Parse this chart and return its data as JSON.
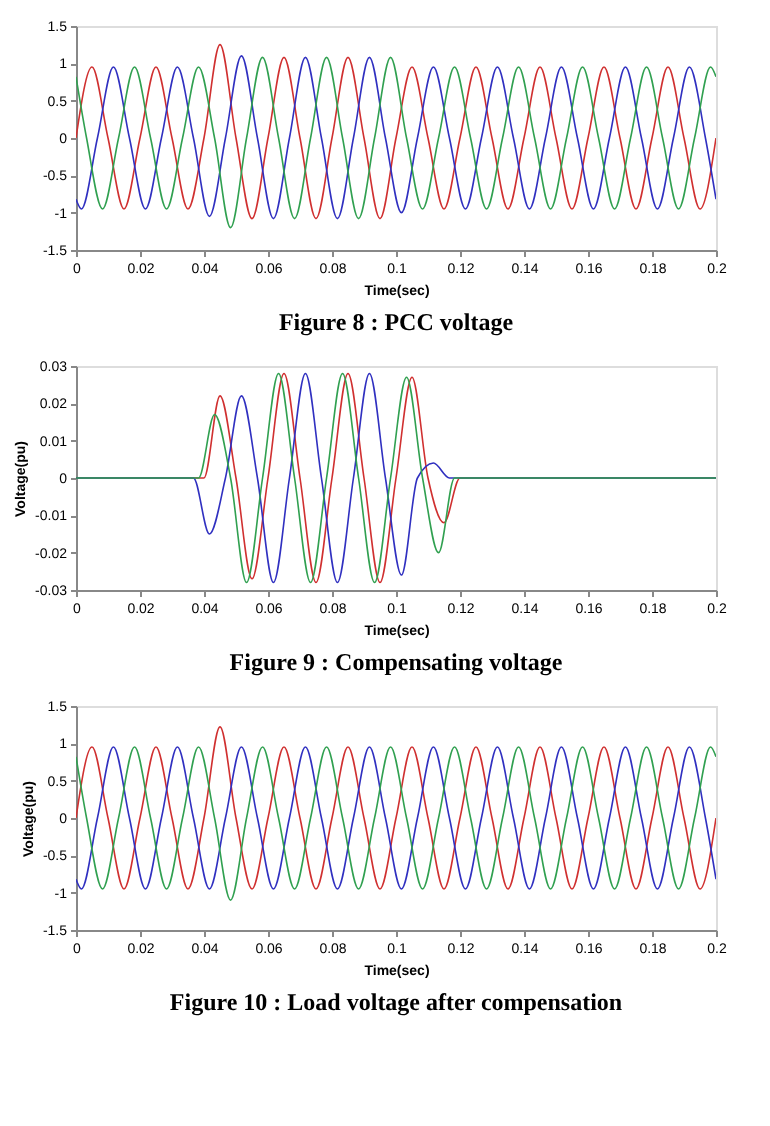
{
  "chart_data": [
    {
      "type": "line",
      "title": "Figure 8 : PCC voltage",
      "xlabel": "Time(sec)",
      "xlim": [
        0,
        0.2
      ],
      "ylim": [
        -1.5,
        1.5
      ],
      "xticks": [
        0,
        0.02,
        0.04,
        0.06,
        0.08,
        0.1,
        0.12,
        0.14,
        0.16,
        0.18,
        0.2
      ],
      "yticks": [
        -1.5,
        -1,
        -0.5,
        0,
        0.5,
        1,
        1.5
      ],
      "series": [
        {
          "color": "#d03030",
          "x": [
            0,
            0.005,
            0.01,
            0.015,
            0.02,
            0.025,
            0.03,
            0.035,
            0.04,
            0.045,
            0.05,
            0.055,
            0.06,
            0.065,
            0.07,
            0.075,
            0.08,
            0.085,
            0.09,
            0.095,
            0.1,
            0.105,
            0.11,
            0.115,
            0.12,
            0.125,
            0.13,
            0.135,
            0.14,
            0.145,
            0.15,
            0.155,
            0.16,
            0.165,
            0.17,
            0.175,
            0.18,
            0.185,
            0.19,
            0.195,
            0.2
          ],
          "values": [
            0,
            0.95,
            0,
            -0.95,
            0,
            0.95,
            0,
            -0.95,
            0,
            1.25,
            0,
            -1.08,
            0,
            1.08,
            0,
            -1.08,
            0,
            1.08,
            0,
            -1.08,
            0,
            0.95,
            0,
            -0.95,
            0,
            0.95,
            0,
            -0.95,
            0,
            0.95,
            0,
            -0.95,
            0,
            0.95,
            0,
            -0.95,
            0,
            0.95,
            0,
            -0.95,
            0
          ]
        },
        {
          "color": "#3030c0",
          "x": [
            0,
            0.0017,
            0.0067,
            0.0117,
            0.0167,
            0.0217,
            0.0267,
            0.0317,
            0.0367,
            0.0417,
            0.0467,
            0.0517,
            0.0567,
            0.0617,
            0.0667,
            0.0717,
            0.0767,
            0.0817,
            0.0867,
            0.0917,
            0.0967,
            0.1017,
            0.1067,
            0.1117,
            0.1167,
            0.1217,
            0.1267,
            0.1317,
            0.1367,
            0.1417,
            0.1467,
            0.1517,
            0.1567,
            0.1617,
            0.1667,
            0.1717,
            0.1767,
            0.1817,
            0.1867,
            0.1917,
            0.1967,
            0.2
          ],
          "values": [
            -0.82,
            -0.95,
            0,
            0.95,
            0,
            -0.95,
            0,
            0.95,
            0,
            -1.05,
            0,
            1.1,
            0,
            -1.08,
            0,
            1.08,
            0,
            -1.08,
            0,
            1.08,
            0,
            -1.0,
            0,
            0.95,
            0,
            -0.95,
            0,
            0.95,
            0,
            -0.95,
            0,
            0.95,
            0,
            -0.95,
            0,
            0.95,
            0,
            -0.95,
            0,
            0.95,
            0,
            -0.82
          ]
        },
        {
          "color": "#30a050",
          "x": [
            0,
            0.0033,
            0.0083,
            0.0133,
            0.0183,
            0.0233,
            0.0283,
            0.0333,
            0.0383,
            0.0433,
            0.0483,
            0.0533,
            0.0583,
            0.0633,
            0.0683,
            0.0733,
            0.0783,
            0.0833,
            0.0883,
            0.0933,
            0.0983,
            0.1033,
            0.1083,
            0.1133,
            0.1183,
            0.1233,
            0.1283,
            0.1333,
            0.1383,
            0.1433,
            0.1483,
            0.1533,
            0.1583,
            0.1633,
            0.1683,
            0.1733,
            0.1783,
            0.1833,
            0.1883,
            0.1933,
            0.1983,
            0.2
          ],
          "values": [
            0.82,
            0,
            -0.95,
            0,
            0.95,
            0,
            -0.95,
            0,
            0.95,
            0,
            -1.2,
            0,
            1.08,
            0,
            -1.08,
            0,
            1.08,
            0,
            -1.08,
            0,
            1.08,
            0,
            -0.95,
            0,
            0.95,
            0,
            -0.95,
            0,
            0.95,
            0,
            -0.95,
            0,
            0.95,
            0,
            -0.95,
            0,
            0.95,
            0,
            -0.95,
            0,
            0.95,
            0.82
          ]
        }
      ]
    },
    {
      "type": "line",
      "title": "Figure 9 : Compensating voltage",
      "xlabel": "Time(sec)",
      "ylabel": "Voltage(pu)",
      "xlim": [
        0,
        0.2
      ],
      "ylim": [
        -0.03,
        0.03
      ],
      "xticks": [
        0,
        0.02,
        0.04,
        0.06,
        0.08,
        0.1,
        0.12,
        0.14,
        0.16,
        0.18,
        0.2
      ],
      "yticks": [
        -0.03,
        -0.02,
        -0.01,
        0,
        0.01,
        0.02,
        0.03
      ],
      "series": [
        {
          "color": "#d03030",
          "x": [
            0,
            0.04,
            0.045,
            0.05,
            0.055,
            0.06,
            0.065,
            0.07,
            0.075,
            0.08,
            0.085,
            0.09,
            0.095,
            0.1,
            0.105,
            0.11,
            0.115,
            0.12,
            0.2
          ],
          "values": [
            0,
            0,
            0.022,
            0,
            -0.027,
            0,
            0.028,
            0,
            -0.028,
            0,
            0.028,
            0,
            -0.028,
            0,
            0.027,
            0,
            -0.012,
            0,
            0
          ]
        },
        {
          "color": "#3030c0",
          "x": [
            0,
            0.0367,
            0.0417,
            0.0467,
            0.0517,
            0.0567,
            0.0617,
            0.0667,
            0.0717,
            0.0767,
            0.0817,
            0.0867,
            0.0917,
            0.0967,
            0.1017,
            0.1067,
            0.1117,
            0.1167,
            0.2
          ],
          "values": [
            0,
            0,
            -0.015,
            0,
            0.022,
            0,
            -0.028,
            0,
            0.028,
            0,
            -0.028,
            0,
            0.028,
            0,
            -0.026,
            0,
            0.004,
            0,
            0
          ]
        },
        {
          "color": "#30a050",
          "x": [
            0,
            0.0383,
            0.0433,
            0.0483,
            0.0533,
            0.0583,
            0.0633,
            0.0683,
            0.0733,
            0.0783,
            0.0833,
            0.0883,
            0.0933,
            0.0983,
            0.1033,
            0.1083,
            0.1133,
            0.1183,
            0.2
          ],
          "values": [
            0,
            0,
            0.017,
            0,
            -0.028,
            0,
            0.028,
            0,
            -0.028,
            0,
            0.028,
            0,
            -0.028,
            0,
            0.027,
            0,
            -0.02,
            0,
            0
          ]
        }
      ]
    },
    {
      "type": "line",
      "title": "Figure 10 : Load voltage after compensation",
      "xlabel": "Time(sec)",
      "ylabel": "Voltage(pu)",
      "xlim": [
        0,
        0.2
      ],
      "ylim": [
        -1.5,
        1.5
      ],
      "xticks": [
        0,
        0.02,
        0.04,
        0.06,
        0.08,
        0.1,
        0.12,
        0.14,
        0.16,
        0.18,
        0.2
      ],
      "yticks": [
        -1.5,
        -1,
        -0.5,
        0,
        0.5,
        1,
        1.5
      ],
      "series": [
        {
          "color": "#d03030",
          "x": [
            0,
            0.005,
            0.01,
            0.015,
            0.02,
            0.025,
            0.03,
            0.035,
            0.04,
            0.045,
            0.05,
            0.055,
            0.06,
            0.065,
            0.07,
            0.075,
            0.08,
            0.085,
            0.09,
            0.095,
            0.1,
            0.105,
            0.11,
            0.115,
            0.12,
            0.125,
            0.13,
            0.135,
            0.14,
            0.145,
            0.15,
            0.155,
            0.16,
            0.165,
            0.17,
            0.175,
            0.18,
            0.185,
            0.19,
            0.195,
            0.2
          ],
          "values": [
            0,
            0.95,
            0,
            -0.95,
            0,
            0.95,
            0,
            -0.95,
            0,
            1.22,
            0,
            -0.95,
            0,
            0.95,
            0,
            -0.95,
            0,
            0.95,
            0,
            -0.95,
            0,
            0.95,
            0,
            -0.95,
            0,
            0.95,
            0,
            -0.95,
            0,
            0.95,
            0,
            -0.95,
            0,
            0.95,
            0,
            -0.95,
            0,
            0.95,
            0,
            -0.95,
            0
          ]
        },
        {
          "color": "#3030c0",
          "x": [
            0,
            0.0017,
            0.0067,
            0.0117,
            0.0167,
            0.0217,
            0.0267,
            0.0317,
            0.0367,
            0.0417,
            0.0467,
            0.0517,
            0.0567,
            0.0617,
            0.0667,
            0.0717,
            0.0767,
            0.0817,
            0.0867,
            0.0917,
            0.0967,
            0.1017,
            0.1067,
            0.1117,
            0.1167,
            0.1217,
            0.1267,
            0.1317,
            0.1367,
            0.1417,
            0.1467,
            0.1517,
            0.1567,
            0.1617,
            0.1667,
            0.1717,
            0.1767,
            0.1817,
            0.1867,
            0.1917,
            0.1967,
            0.2
          ],
          "values": [
            -0.82,
            -0.95,
            0,
            0.95,
            0,
            -0.95,
            0,
            0.95,
            0,
            -0.95,
            0,
            0.95,
            0,
            -0.95,
            0,
            0.95,
            0,
            -0.95,
            0,
            0.95,
            0,
            -0.95,
            0,
            0.95,
            0,
            -0.95,
            0,
            0.95,
            0,
            -0.95,
            0,
            0.95,
            0,
            -0.95,
            0,
            0.95,
            0,
            -0.95,
            0,
            0.95,
            0,
            -0.82
          ]
        },
        {
          "color": "#30a050",
          "x": [
            0,
            0.0033,
            0.0083,
            0.0133,
            0.0183,
            0.0233,
            0.0283,
            0.0333,
            0.0383,
            0.0433,
            0.0483,
            0.0533,
            0.0583,
            0.0633,
            0.0683,
            0.0733,
            0.0783,
            0.0833,
            0.0883,
            0.0933,
            0.0983,
            0.1033,
            0.1083,
            0.1133,
            0.1183,
            0.1233,
            0.1283,
            0.1333,
            0.1383,
            0.1433,
            0.1483,
            0.1533,
            0.1583,
            0.1633,
            0.1683,
            0.1733,
            0.1783,
            0.1833,
            0.1883,
            0.1933,
            0.1983,
            0.2
          ],
          "values": [
            0.82,
            0,
            -0.95,
            0,
            0.95,
            0,
            -0.95,
            0,
            0.95,
            0,
            -1.1,
            0,
            0.95,
            0,
            -0.95,
            0,
            0.95,
            0,
            -0.95,
            0,
            0.95,
            0,
            -0.95,
            0,
            0.95,
            0,
            -0.95,
            0,
            0.95,
            0,
            -0.95,
            0,
            0.95,
            0,
            -0.95,
            0,
            0.95,
            0,
            -0.95,
            0,
            0.95,
            0.82
          ]
        }
      ]
    }
  ]
}
